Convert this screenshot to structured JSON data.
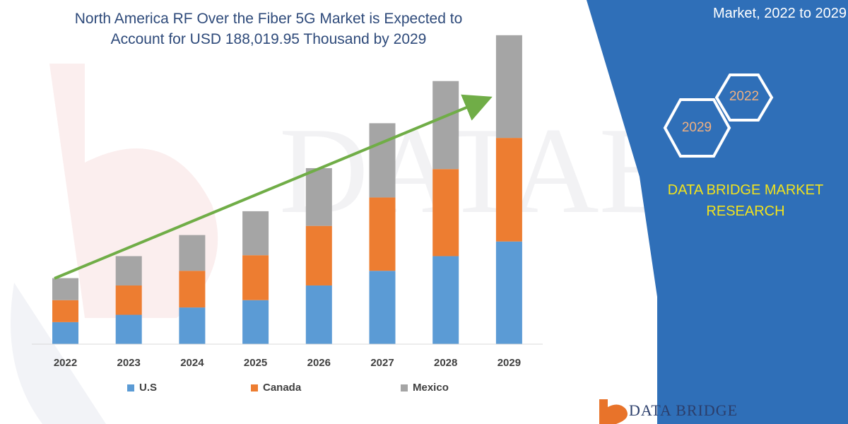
{
  "title": {
    "line1": "North America RF Over the Fiber 5G Market is Expected to",
    "line2": "Account for USD 188,019.95 Thousand by 2029"
  },
  "side_panel": {
    "title": "Market, 2022 to 2029",
    "hex_top": "2022",
    "hex_bottom": "2029",
    "brand_line1": "DATA BRIDGE MARKET",
    "brand_line2": "RESEARCH",
    "logo_text": "DATA BRIDGE",
    "colors": {
      "panel": "#2f6fb8",
      "brand_text": "#f2e31c",
      "hex_stroke": "#ffffff"
    }
  },
  "watermark": "DATABRIDGE",
  "chart_data": {
    "type": "bar",
    "stacked": true,
    "categories": [
      "2022",
      "2023",
      "2024",
      "2025",
      "2026",
      "2027",
      "2028",
      "2029"
    ],
    "series": [
      {
        "name": "U.S",
        "color": "#5b9bd5",
        "values": [
          24,
          32,
          40,
          48,
          64,
          80,
          96,
          112
        ]
      },
      {
        "name": "Canada",
        "color": "#ed7d31",
        "values": [
          24,
          32,
          40,
          49,
          65,
          80,
          95,
          113
        ]
      },
      {
        "name": "Mexico",
        "color": "#a5a5a5",
        "values": [
          24,
          32,
          39,
          48,
          63,
          81,
          96,
          112
        ]
      }
    ],
    "trend_arrow": true,
    "trend_color": "#70ad47",
    "legend_position": "bottom",
    "grid": false,
    "ylim": [
      0,
      360
    ]
  }
}
